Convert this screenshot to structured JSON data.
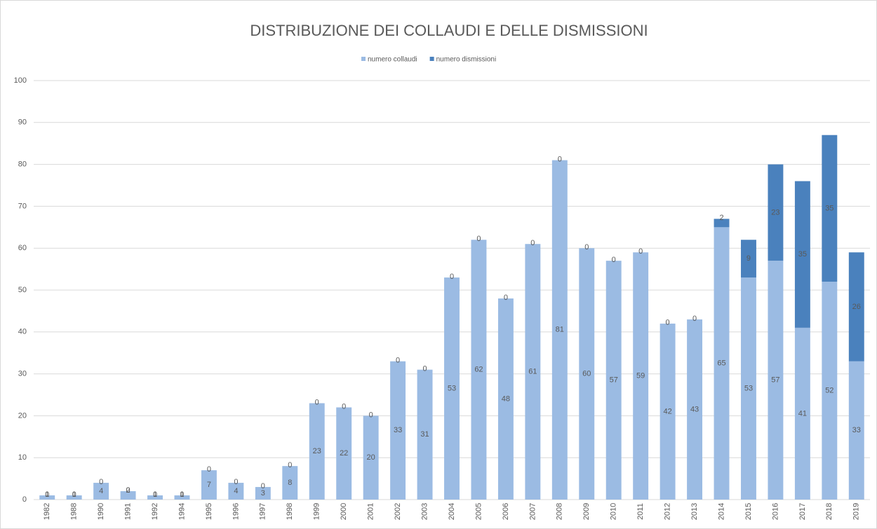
{
  "chart_data": {
    "type": "stacked_bar",
    "title": "DISTRIBUZIONE DEI COLLAUDI E DELLE DISMISSIONI",
    "categories": [
      "1982",
      "1988",
      "1990",
      "1991",
      "1992",
      "1994",
      "1995",
      "1996",
      "1997",
      "1998",
      "1999",
      "2000",
      "2001",
      "2002",
      "2003",
      "2004",
      "2005",
      "2006",
      "2007",
      "2008",
      "2009",
      "2010",
      "2011",
      "2012",
      "2013",
      "2014",
      "2015",
      "2016",
      "2017",
      "2018",
      "2019"
    ],
    "series": [
      {
        "name": "numero collaudi",
        "color": "#9bbbe3",
        "values": [
          1,
          1,
          4,
          2,
          1,
          1,
          7,
          4,
          3,
          8,
          23,
          22,
          20,
          33,
          31,
          53,
          62,
          48,
          61,
          81,
          60,
          57,
          59,
          42,
          43,
          65,
          53,
          57,
          41,
          52,
          33
        ]
      },
      {
        "name": "numero dismissioni",
        "color": "#4a81bd",
        "values": [
          0,
          0,
          0,
          0,
          0,
          0,
          0,
          0,
          0,
          0,
          0,
          0,
          0,
          0,
          0,
          0,
          0,
          0,
          0,
          0,
          0,
          0,
          0,
          0,
          0,
          2,
          9,
          23,
          35,
          35,
          26
        ]
      }
    ],
    "ylim": [
      0,
      100
    ],
    "yticks": [
      0,
      10,
      20,
      30,
      40,
      50,
      60,
      70,
      80,
      90,
      100
    ],
    "grid": true,
    "legend": "top"
  }
}
